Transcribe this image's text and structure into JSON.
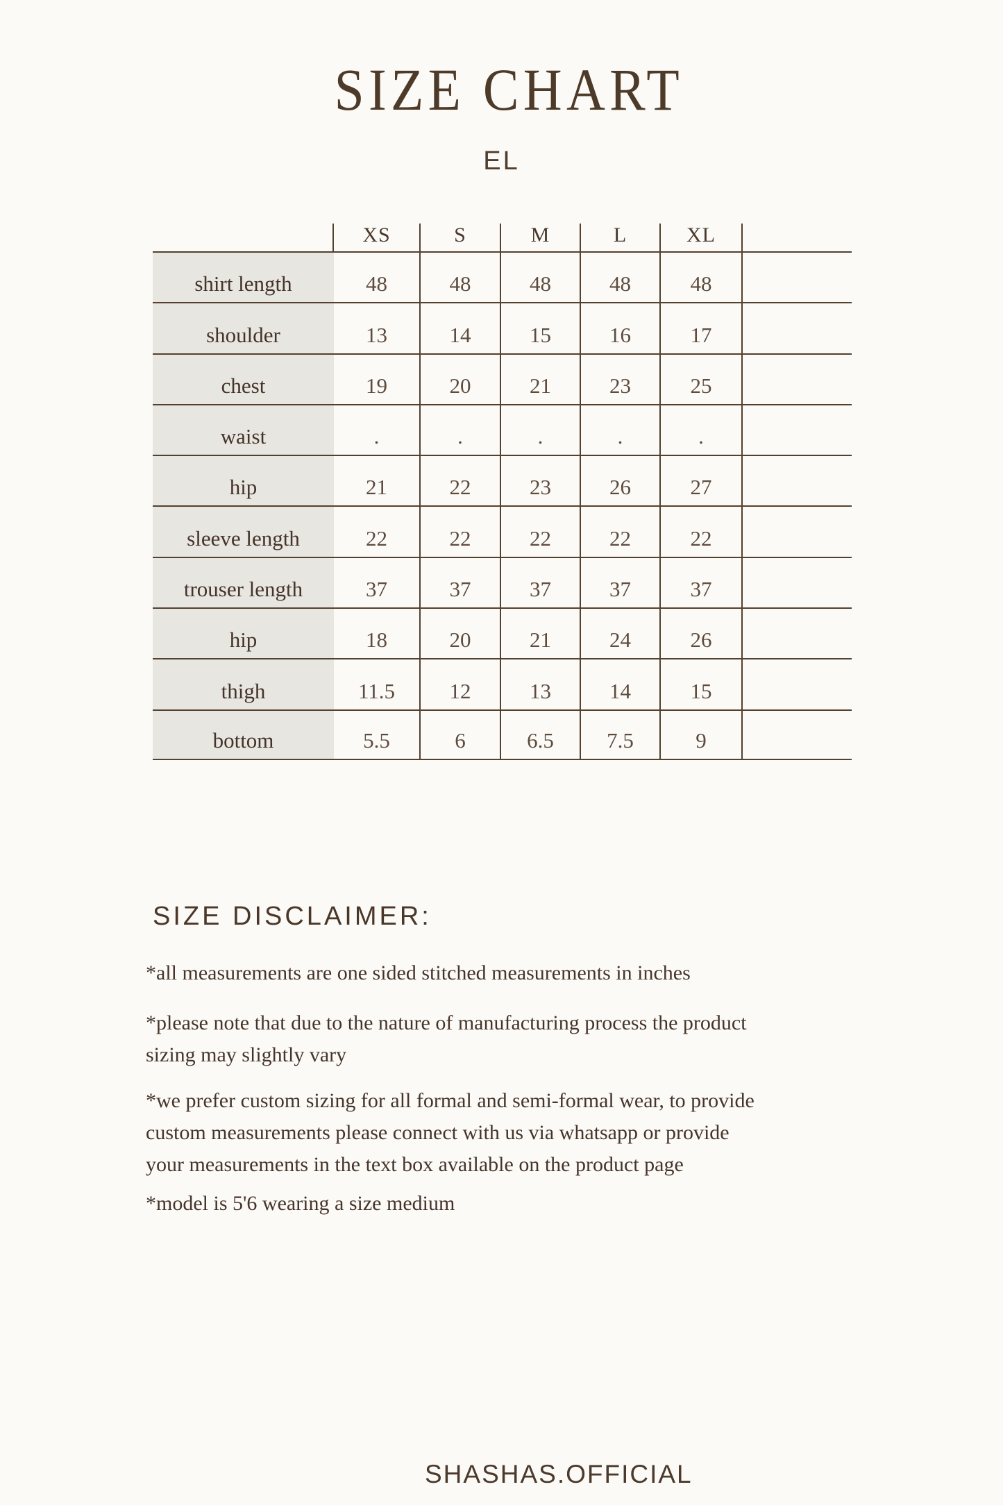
{
  "page": {
    "title": "SIZE CHART",
    "subtitle": "EL",
    "footer": "SHASHAS.OFFICIAL"
  },
  "colors": {
    "brand_brown": "#4d3a28",
    "table_line": "#54402e",
    "label_cell_background": "#e8e6e0",
    "page_background": "#fbfaf6"
  },
  "table": {
    "column_headers": [
      "XS",
      "S",
      "M",
      "L",
      "XL"
    ],
    "rows": [
      {
        "label": "shirt length",
        "values": [
          "48",
          "48",
          "48",
          "48",
          "48"
        ]
      },
      {
        "label": "shoulder",
        "values": [
          "13",
          "14",
          "15",
          "16",
          "17"
        ]
      },
      {
        "label": "chest",
        "values": [
          "19",
          "20",
          "21",
          "23",
          "25"
        ]
      },
      {
        "label": "waist",
        "values": [
          ".",
          ".",
          ".",
          ".",
          "."
        ]
      },
      {
        "label": "hip",
        "values": [
          "21",
          "22",
          "23",
          "26",
          "27"
        ]
      },
      {
        "label": "sleeve length",
        "values": [
          "22",
          "22",
          "22",
          "22",
          "22"
        ]
      },
      {
        "label": "trouser length",
        "values": [
          "37",
          "37",
          "37",
          "37",
          "37"
        ]
      },
      {
        "label": "hip",
        "values": [
          "18",
          "20",
          "21",
          "24",
          "26"
        ]
      },
      {
        "label": "thigh",
        "values": [
          "11.5",
          "12",
          "13",
          "14",
          "15"
        ]
      },
      {
        "label": "bottom",
        "values": [
          "5.5",
          "6",
          "6.5",
          "7.5",
          "9"
        ]
      }
    ]
  },
  "disclaimer": {
    "heading": "SIZE DISCLAIMER:",
    "paragraphs": [
      {
        "lines": [
          "*all measurements are one sided stitched measurements in inches"
        ]
      },
      {
        "lines": [
          "*please note that due to the nature of manufacturing process the product",
          "sizing may slightly vary"
        ]
      },
      {
        "lines": [
          "*we prefer custom sizing for all formal and semi-formal wear, to provide",
          "custom measurements please connect with us via whatsapp or provide",
          "your measurements in the text box available on the product page"
        ]
      },
      {
        "lines": [
          "*model is 5'6 wearing a size medium"
        ]
      }
    ]
  }
}
